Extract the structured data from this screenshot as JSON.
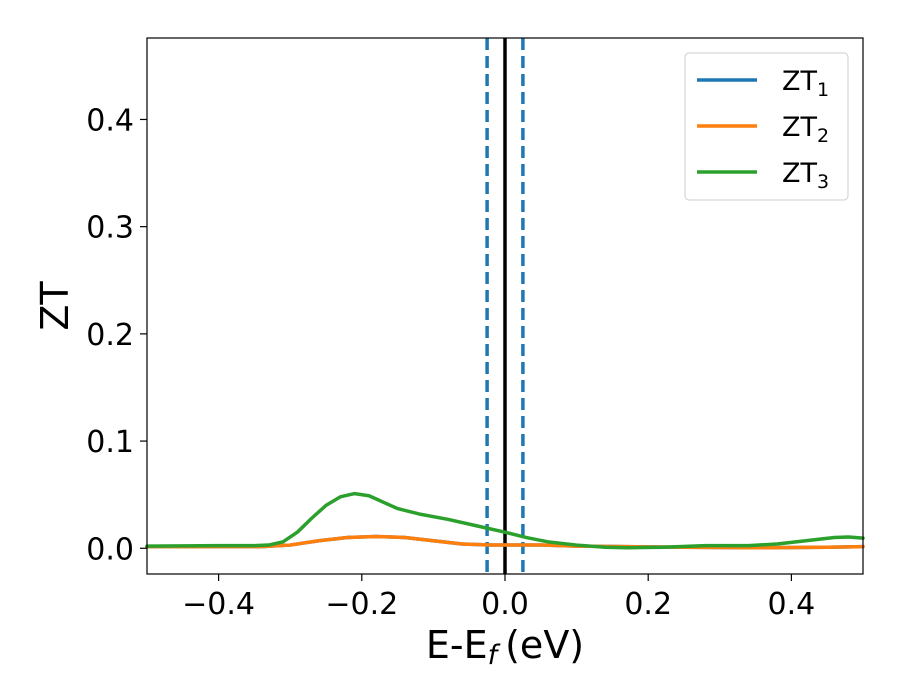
{
  "chart_data": {
    "type": "line",
    "xlabel": "E-E",
    "xlabel_sub": "f",
    "xlabel_unit": "(eV)",
    "ylabel": "ZT",
    "xlim": [
      -0.5,
      0.5
    ],
    "ylim": [
      -0.024,
      0.476
    ],
    "x_ticks": [
      -0.4,
      -0.2,
      0.0,
      0.2,
      0.4
    ],
    "x_tick_labels": [
      "−0.4",
      "−0.2",
      "0.0",
      "0.2",
      "0.4"
    ],
    "y_ticks": [
      0.0,
      0.1,
      0.2,
      0.3,
      0.4
    ],
    "y_tick_labels": [
      "0.0",
      "0.1",
      "0.2",
      "0.3",
      "0.4"
    ],
    "grid": false,
    "legend_position": "top-right",
    "reference_lines": {
      "solid": {
        "x": 0.0,
        "color": "#000000"
      },
      "dashed": {
        "x": [
          -0.025,
          0.025
        ],
        "color": "#1f77b4"
      }
    },
    "series": [
      {
        "name": "ZT",
        "sub": "1",
        "color": "#1f77b4",
        "x": [
          -0.5,
          -0.4,
          -0.34,
          -0.3,
          -0.26,
          -0.22,
          -0.18,
          -0.14,
          -0.1,
          -0.06,
          -0.02,
          0.0,
          0.05,
          0.1,
          0.17,
          0.25,
          0.35,
          0.45,
          0.5
        ],
        "y": [
          0.0015,
          0.0015,
          0.0015,
          0.003,
          0.007,
          0.01,
          0.011,
          0.01,
          0.007,
          0.004,
          0.003,
          0.003,
          0.003,
          0.002,
          0.0015,
          0.001,
          0.0005,
          0.001,
          0.0015
        ]
      },
      {
        "name": "ZT",
        "sub": "2",
        "color": "#ff7f0e",
        "x": [
          -0.5,
          -0.4,
          -0.34,
          -0.3,
          -0.26,
          -0.22,
          -0.18,
          -0.14,
          -0.1,
          -0.06,
          -0.02,
          0.0,
          0.05,
          0.1,
          0.17,
          0.25,
          0.35,
          0.45,
          0.5
        ],
        "y": [
          0.0015,
          0.0015,
          0.0015,
          0.003,
          0.007,
          0.01,
          0.011,
          0.01,
          0.007,
          0.004,
          0.003,
          0.003,
          0.003,
          0.002,
          0.0015,
          0.001,
          0.0005,
          0.001,
          0.0015
        ]
      },
      {
        "name": "ZT",
        "sub": "3",
        "color": "#2ca02c",
        "x": [
          -0.5,
          -0.4,
          -0.35,
          -0.33,
          -0.31,
          -0.29,
          -0.27,
          -0.25,
          -0.23,
          -0.21,
          -0.19,
          -0.17,
          -0.15,
          -0.12,
          -0.08,
          -0.04,
          0.0,
          0.03,
          0.06,
          0.1,
          0.14,
          0.17,
          0.22,
          0.28,
          0.34,
          0.38,
          0.42,
          0.46,
          0.48,
          0.5
        ],
        "y": [
          0.002,
          0.0025,
          0.0025,
          0.003,
          0.006,
          0.015,
          0.028,
          0.04,
          0.048,
          0.051,
          0.049,
          0.043,
          0.037,
          0.032,
          0.027,
          0.021,
          0.015,
          0.01,
          0.006,
          0.003,
          0.001,
          0.0005,
          0.001,
          0.0025,
          0.0025,
          0.004,
          0.007,
          0.01,
          0.0105,
          0.0095
        ]
      }
    ]
  }
}
